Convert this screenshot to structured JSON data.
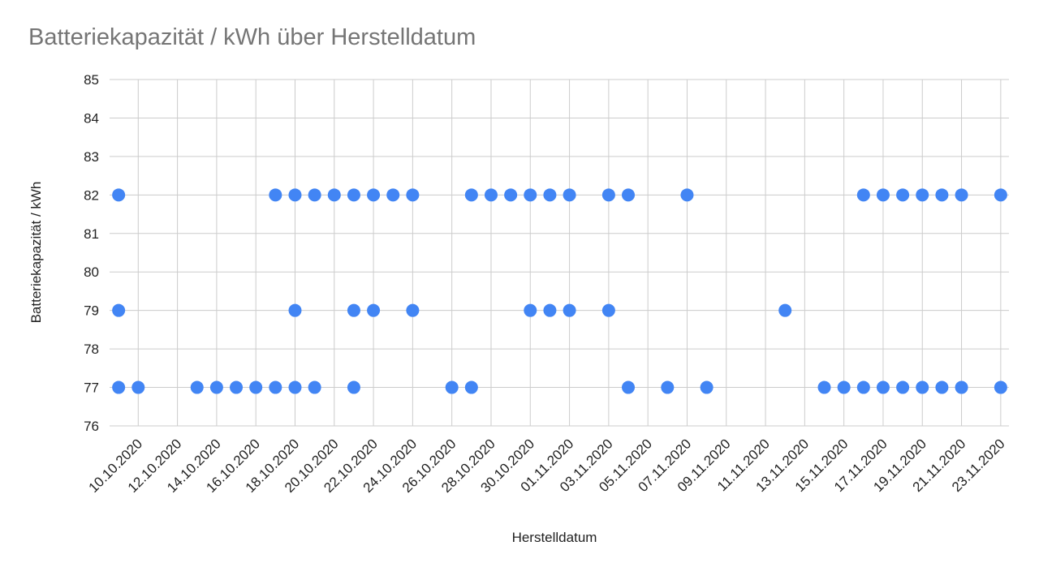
{
  "chart_data": {
    "type": "scatter",
    "title": "Batteriekapazität / kWh über Herstelldatum",
    "x_label": "Herstelldatum",
    "y_label": "Batteriekapazität / kWh",
    "color": "#4285f4",
    "grid": true,
    "x": [
      "09.10.2020",
      "09.10.2020",
      "09.10.2020",
      "10.10.2020",
      "13.10.2020",
      "14.10.2020",
      "15.10.2020",
      "16.10.2020",
      "17.10.2020",
      "17.10.2020",
      "18.10.2020",
      "18.10.2020",
      "18.10.2020",
      "19.10.2020",
      "19.10.2020",
      "20.10.2020",
      "21.10.2020",
      "21.10.2020",
      "21.10.2020",
      "22.10.2020",
      "22.10.2020",
      "23.10.2020",
      "24.10.2020",
      "24.10.2020",
      "26.10.2020",
      "27.10.2020",
      "27.10.2020",
      "28.10.2020",
      "29.10.2020",
      "30.10.2020",
      "30.10.2020",
      "31.10.2020",
      "31.10.2020",
      "01.11.2020",
      "01.11.2020",
      "03.11.2020",
      "03.11.2020",
      "04.11.2020",
      "04.11.2020",
      "06.11.2020",
      "07.11.2020",
      "08.11.2020",
      "12.11.2020",
      "14.11.2020",
      "15.11.2020",
      "16.11.2020",
      "16.11.2020",
      "17.11.2020",
      "17.11.2020",
      "18.11.2020",
      "18.11.2020",
      "19.11.2020",
      "19.11.2020",
      "20.11.2020",
      "20.11.2020",
      "21.11.2020",
      "21.11.2020",
      "23.11.2020",
      "23.11.2020"
    ],
    "values": [
      82,
      79,
      77,
      77,
      77,
      77,
      77,
      77,
      82,
      77,
      82,
      79,
      77,
      82,
      77,
      82,
      82,
      79,
      77,
      82,
      79,
      82,
      82,
      79,
      77,
      82,
      77,
      82,
      82,
      82,
      79,
      82,
      79,
      82,
      79,
      82,
      79,
      82,
      77,
      77,
      82,
      77,
      79,
      77,
      77,
      82,
      77,
      82,
      77,
      82,
      77,
      82,
      77,
      82,
      77,
      82,
      77,
      82,
      77
    ],
    "xlim": [
      "08.10.2020",
      "24.11.2020"
    ],
    "xticks": [
      "10.10.2020",
      "12.10.2020",
      "14.10.2020",
      "16.10.2020",
      "18.10.2020",
      "20.10.2020",
      "22.10.2020",
      "24.10.2020",
      "26.10.2020",
      "28.10.2020",
      "30.10.2020",
      "01.11.2020",
      "03.11.2020",
      "05.11.2020",
      "07.11.2020",
      "09.11.2020",
      "11.11.2020",
      "13.11.2020",
      "15.11.2020",
      "17.11.2020",
      "19.11.2020",
      "21.11.2020",
      "23.11.2020"
    ],
    "ylim": [
      76,
      85
    ],
    "yticks": [
      76,
      77,
      78,
      79,
      80,
      81,
      82,
      83,
      84,
      85
    ]
  }
}
